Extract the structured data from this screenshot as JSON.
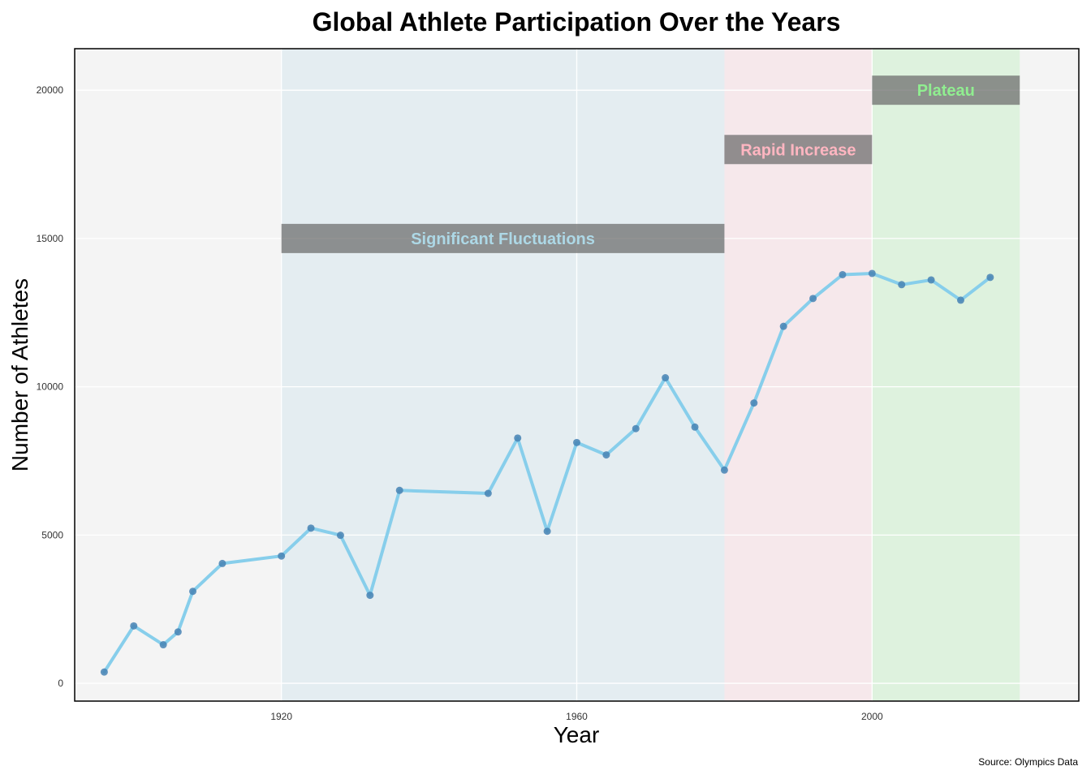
{
  "chart_data": {
    "type": "line",
    "title": "Global Athlete Participation Over the Years",
    "xlabel": "Year",
    "ylabel": "Number of Athletes",
    "caption": "Source: Olympics Data",
    "xlim": [
      1892,
      2028
    ],
    "ylim": [
      -600,
      21400
    ],
    "x_ticks": [
      1920,
      1960,
      2000
    ],
    "y_ticks": [
      0,
      5000,
      10000,
      15000,
      20000
    ],
    "grid": true,
    "series": [
      {
        "x": [
          1896,
          1900,
          1904,
          1906,
          1908,
          1912,
          1920,
          1924,
          1928,
          1932,
          1936,
          1948,
          1952,
          1956,
          1960,
          1964,
          1968,
          1972,
          1976,
          1980,
          1984,
          1988,
          1992,
          1996,
          2000,
          2004,
          2008,
          2012,
          2016
        ],
        "values": [
          380,
          1936,
          1301,
          1733,
          3101,
          4040,
          4292,
          5233,
          4992,
          2969,
          6506,
          6405,
          8270,
          5127,
          8119,
          7702,
          8588,
          10304,
          8641,
          7191,
          9454,
          12037,
          12977,
          13780,
          13821,
          13443,
          13602,
          12920,
          13688
        ]
      }
    ],
    "colors": {
      "line": "#87ceeb",
      "point": "#4682b4",
      "panel_bg": "#f4f4f4",
      "grid": "#ffffff"
    },
    "annotations": [
      {
        "label": "Significant Fluctuations",
        "x_start": 1920,
        "x_end": 1980,
        "label_y": 15000,
        "band_color": "#add8e6",
        "text_color": "#add8e6"
      },
      {
        "label": "Rapid Increase",
        "x_start": 1980,
        "x_end": 2000,
        "label_y": 18000,
        "band_color": "#ffc0cb",
        "text_color": "#ffb6c1"
      },
      {
        "label": "Plateau",
        "x_start": 2000,
        "x_end": 2020,
        "label_y": 20000,
        "band_color": "#90ee90",
        "text_color": "#90ee90"
      }
    ]
  }
}
